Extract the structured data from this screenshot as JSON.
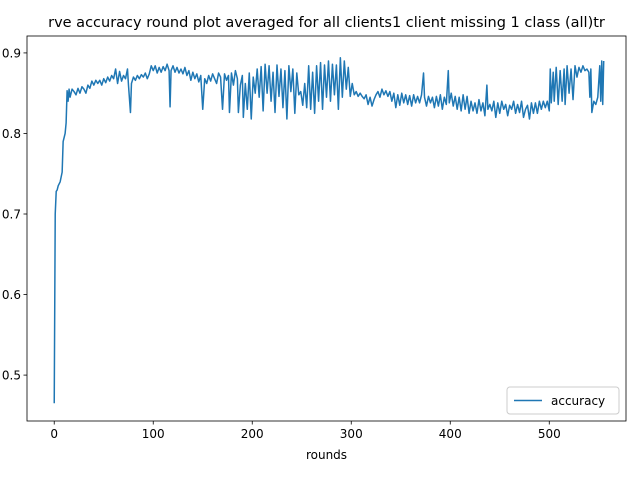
{
  "chart_data": {
    "type": "line",
    "title": "rve accuracy round plot averaged for all clients1 client missing 1 class (all)tr",
    "xlabel": "rounds",
    "ylabel": "",
    "xlim": [
      -27.5,
      577.5
    ],
    "ylim": [
      0.443,
      0.921
    ],
    "xticks": [
      0,
      100,
      200,
      300,
      400,
      500
    ],
    "yticks": [
      0.5,
      0.6,
      0.7,
      0.8,
      0.9
    ],
    "ytick_labels": [
      "0.5",
      "0.6",
      "0.7",
      "0.8",
      "0.9"
    ],
    "grid": false,
    "legend": {
      "position": "bottom-right",
      "entries": [
        "accuracy"
      ]
    },
    "series": [
      {
        "name": "accuracy",
        "color": "#1f77b4",
        "points": [
          [
            0,
            0.465
          ],
          [
            1,
            0.7
          ],
          [
            2,
            0.728
          ],
          [
            3,
            0.73
          ],
          [
            4,
            0.735
          ],
          [
            6,
            0.74
          ],
          [
            8,
            0.752
          ],
          [
            9,
            0.79
          ],
          [
            11,
            0.8
          ],
          [
            12,
            0.813
          ],
          [
            13,
            0.853
          ],
          [
            14,
            0.84
          ],
          [
            15,
            0.855
          ],
          [
            16,
            0.845
          ],
          [
            18,
            0.855
          ],
          [
            20,
            0.852
          ],
          [
            22,
            0.848
          ],
          [
            24,
            0.856
          ],
          [
            26,
            0.85
          ],
          [
            28,
            0.858
          ],
          [
            30,
            0.855
          ],
          [
            32,
            0.85
          ],
          [
            34,
            0.86
          ],
          [
            36,
            0.856
          ],
          [
            38,
            0.865
          ],
          [
            40,
            0.86
          ],
          [
            42,
            0.866
          ],
          [
            44,
            0.862
          ],
          [
            46,
            0.866
          ],
          [
            48,
            0.86
          ],
          [
            50,
            0.868
          ],
          [
            52,
            0.863
          ],
          [
            54,
            0.87
          ],
          [
            56,
            0.865
          ],
          [
            58,
            0.872
          ],
          [
            60,
            0.868
          ],
          [
            62,
            0.88
          ],
          [
            64,
            0.862
          ],
          [
            66,
            0.877
          ],
          [
            68,
            0.865
          ],
          [
            70,
            0.872
          ],
          [
            72,
            0.868
          ],
          [
            74,
            0.88
          ],
          [
            75,
            0.86
          ],
          [
            77,
            0.826
          ],
          [
            78,
            0.862
          ],
          [
            80,
            0.87
          ],
          [
            82,
            0.866
          ],
          [
            84,
            0.872
          ],
          [
            86,
            0.868
          ],
          [
            88,
            0.873
          ],
          [
            90,
            0.87
          ],
          [
            92,
            0.875
          ],
          [
            94,
            0.868
          ],
          [
            96,
            0.874
          ],
          [
            98,
            0.884
          ],
          [
            100,
            0.878
          ],
          [
            102,
            0.884
          ],
          [
            104,
            0.875
          ],
          [
            106,
            0.882
          ],
          [
            108,
            0.876
          ],
          [
            110,
            0.883
          ],
          [
            112,
            0.878
          ],
          [
            114,
            0.886
          ],
          [
            116,
            0.878
          ],
          [
            117,
            0.833
          ],
          [
            118,
            0.878
          ],
          [
            120,
            0.884
          ],
          [
            122,
            0.876
          ],
          [
            124,
            0.882
          ],
          [
            126,
            0.875
          ],
          [
            128,
            0.88
          ],
          [
            130,
            0.874
          ],
          [
            132,
            0.882
          ],
          [
            134,
            0.872
          ],
          [
            136,
            0.878
          ],
          [
            138,
            0.866
          ],
          [
            140,
            0.876
          ],
          [
            142,
            0.868
          ],
          [
            144,
            0.874
          ],
          [
            146,
            0.864
          ],
          [
            148,
            0.872
          ],
          [
            150,
            0.83
          ],
          [
            152,
            0.868
          ],
          [
            154,
            0.862
          ],
          [
            156,
            0.872
          ],
          [
            158,
            0.865
          ],
          [
            160,
            0.874
          ],
          [
            162,
            0.868
          ],
          [
            164,
            0.862
          ],
          [
            166,
            0.875
          ],
          [
            168,
            0.87
          ],
          [
            170,
            0.83
          ],
          [
            172,
            0.874
          ],
          [
            174,
            0.866
          ],
          [
            176,
            0.872
          ],
          [
            177,
            0.826
          ],
          [
            179,
            0.875
          ],
          [
            181,
            0.86
          ],
          [
            183,
            0.878
          ],
          [
            185,
            0.868
          ],
          [
            186,
            0.826
          ],
          [
            188,
            0.86
          ],
          [
            190,
            0.872
          ],
          [
            191,
            0.82
          ],
          [
            193,
            0.862
          ],
          [
            195,
            0.83
          ],
          [
            197,
            0.875
          ],
          [
            199,
            0.818
          ],
          [
            201,
            0.87
          ],
          [
            203,
            0.85
          ],
          [
            205,
            0.88
          ],
          [
            207,
            0.845
          ],
          [
            209,
            0.883
          ],
          [
            211,
            0.828
          ],
          [
            213,
            0.886
          ],
          [
            215,
            0.85
          ],
          [
            217,
            0.884
          ],
          [
            219,
            0.84
          ],
          [
            221,
            0.876
          ],
          [
            223,
            0.826
          ],
          [
            225,
            0.885
          ],
          [
            227,
            0.846
          ],
          [
            229,
            0.88
          ],
          [
            231,
            0.832
          ],
          [
            233,
            0.878
          ],
          [
            235,
            0.818
          ],
          [
            237,
            0.884
          ],
          [
            239,
            0.852
          ],
          [
            241,
            0.88
          ],
          [
            243,
            0.825
          ],
          [
            245,
            0.875
          ],
          [
            247,
            0.848
          ],
          [
            249,
            0.852
          ],
          [
            251,
            0.835
          ],
          [
            253,
            0.862
          ],
          [
            255,
            0.832
          ],
          [
            257,
            0.884
          ],
          [
            259,
            0.83
          ],
          [
            261,
            0.876
          ],
          [
            263,
            0.825
          ],
          [
            265,
            0.884
          ],
          [
            267,
            0.84
          ],
          [
            269,
            0.888
          ],
          [
            271,
            0.83
          ],
          [
            273,
            0.885
          ],
          [
            275,
            0.845
          ],
          [
            277,
            0.89
          ],
          [
            279,
            0.84
          ],
          [
            281,
            0.886
          ],
          [
            283,
            0.848
          ],
          [
            285,
            0.885
          ],
          [
            287,
            0.83
          ],
          [
            289,
            0.894
          ],
          [
            291,
            0.845
          ],
          [
            293,
            0.89
          ],
          [
            295,
            0.855
          ],
          [
            297,
            0.882
          ],
          [
            299,
            0.846
          ],
          [
            301,
            0.862
          ],
          [
            303,
            0.848
          ],
          [
            305,
            0.852
          ],
          [
            307,
            0.846
          ],
          [
            309,
            0.85
          ],
          [
            311,
            0.846
          ],
          [
            313,
            0.843
          ],
          [
            315,
            0.848
          ],
          [
            317,
            0.836
          ],
          [
            319,
            0.845
          ],
          [
            321,
            0.834
          ],
          [
            323,
            0.842
          ],
          [
            325,
            0.848
          ],
          [
            327,
            0.852
          ],
          [
            329,
            0.845
          ],
          [
            331,
            0.855
          ],
          [
            333,
            0.848
          ],
          [
            335,
            0.853
          ],
          [
            337,
            0.846
          ],
          [
            339,
            0.852
          ],
          [
            341,
            0.84
          ],
          [
            343,
            0.85
          ],
          [
            345,
            0.832
          ],
          [
            347,
            0.848
          ],
          [
            349,
            0.835
          ],
          [
            351,
            0.85
          ],
          [
            353,
            0.838
          ],
          [
            355,
            0.848
          ],
          [
            357,
            0.836
          ],
          [
            359,
            0.847
          ],
          [
            361,
            0.834
          ],
          [
            363,
            0.848
          ],
          [
            365,
            0.838
          ],
          [
            367,
            0.846
          ],
          [
            369,
            0.838
          ],
          [
            371,
            0.848
          ],
          [
            373,
            0.875
          ],
          [
            374,
            0.845
          ],
          [
            376,
            0.834
          ],
          [
            378,
            0.846
          ],
          [
            380,
            0.838
          ],
          [
            382,
            0.845
          ],
          [
            384,
            0.832
          ],
          [
            386,
            0.846
          ],
          [
            388,
            0.834
          ],
          [
            390,
            0.848
          ],
          [
            392,
            0.83
          ],
          [
            394,
            0.845
          ],
          [
            396,
            0.836
          ],
          [
            398,
            0.878
          ],
          [
            399,
            0.838
          ],
          [
            401,
            0.85
          ],
          [
            403,
            0.834
          ],
          [
            405,
            0.846
          ],
          [
            407,
            0.83
          ],
          [
            409,
            0.845
          ],
          [
            411,
            0.828
          ],
          [
            413,
            0.848
          ],
          [
            415,
            0.83
          ],
          [
            417,
            0.846
          ],
          [
            419,
            0.825
          ],
          [
            421,
            0.84
          ],
          [
            423,
            0.828
          ],
          [
            425,
            0.838
          ],
          [
            427,
            0.825
          ],
          [
            429,
            0.842
          ],
          [
            431,
            0.828
          ],
          [
            433,
            0.838
          ],
          [
            435,
            0.822
          ],
          [
            437,
            0.86
          ],
          [
            438,
            0.83
          ],
          [
            440,
            0.836
          ],
          [
            442,
            0.828
          ],
          [
            444,
            0.84
          ],
          [
            446,
            0.82
          ],
          [
            448,
            0.838
          ],
          [
            450,
            0.825
          ],
          [
            452,
            0.84
          ],
          [
            454,
            0.83
          ],
          [
            456,
            0.836
          ],
          [
            458,
            0.822
          ],
          [
            460,
            0.835
          ],
          [
            462,
            0.83
          ],
          [
            464,
            0.84
          ],
          [
            466,
            0.825
          ],
          [
            468,
            0.836
          ],
          [
            470,
            0.826
          ],
          [
            472,
            0.84
          ],
          [
            474,
            0.82
          ],
          [
            476,
            0.83
          ],
          [
            478,
            0.835
          ],
          [
            480,
            0.818
          ],
          [
            482,
            0.838
          ],
          [
            484,
            0.825
          ],
          [
            486,
            0.838
          ],
          [
            488,
            0.825
          ],
          [
            490,
            0.84
          ],
          [
            492,
            0.83
          ],
          [
            494,
            0.84
          ],
          [
            496,
            0.832
          ],
          [
            498,
            0.84
          ],
          [
            500,
            0.828
          ],
          [
            501,
            0.88
          ],
          [
            502,
            0.838
          ],
          [
            504,
            0.876
          ],
          [
            505,
            0.84
          ],
          [
            507,
            0.882
          ],
          [
            509,
            0.836
          ],
          [
            511,
            0.878
          ],
          [
            513,
            0.84
          ],
          [
            515,
            0.88
          ],
          [
            516,
            0.836
          ],
          [
            518,
            0.884
          ],
          [
            520,
            0.85
          ],
          [
            522,
            0.88
          ],
          [
            524,
            0.842
          ],
          [
            526,
            0.884
          ],
          [
            528,
            0.87
          ],
          [
            530,
            0.882
          ],
          [
            532,
            0.876
          ],
          [
            534,
            0.884
          ],
          [
            536,
            0.878
          ],
          [
            538,
            0.88
          ],
          [
            540,
            0.876
          ],
          [
            541,
            0.845
          ],
          [
            542,
            0.88
          ],
          [
            543,
            0.826
          ],
          [
            545,
            0.84
          ],
          [
            547,
            0.836
          ],
          [
            549,
            0.845
          ],
          [
            551,
            0.884
          ],
          [
            552,
            0.84
          ],
          [
            553,
            0.89
          ],
          [
            554,
            0.836
          ],
          [
            555,
            0.89
          ]
        ]
      }
    ]
  }
}
